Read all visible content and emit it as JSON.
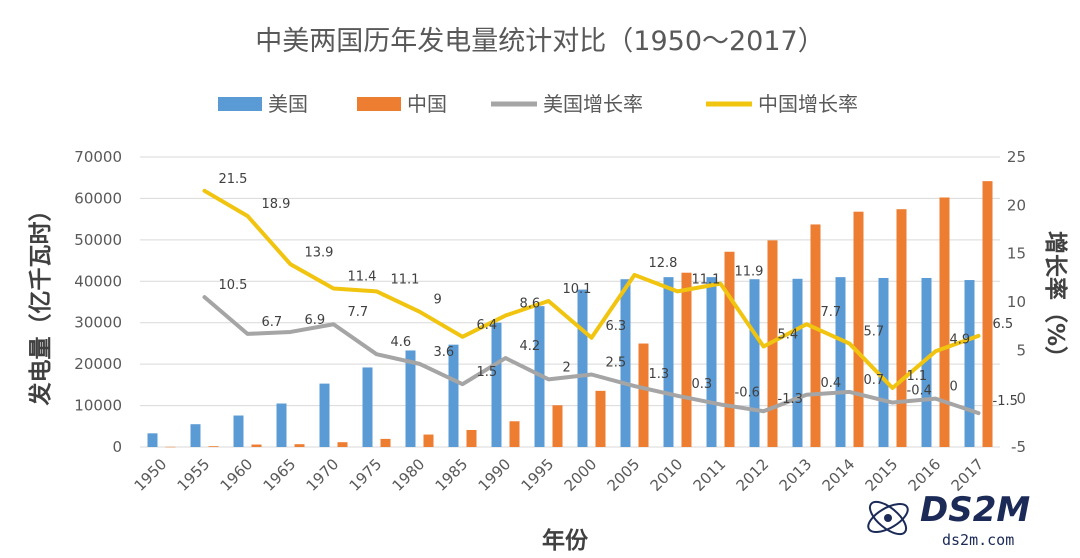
{
  "chart_data": {
    "type": "bar",
    "title": "中美两国历年发电量统计对比（1950～2017）",
    "xlabel": "年份",
    "ylabel": "发电量（亿千瓦时）",
    "y2label": "增长率（%）",
    "categories": [
      "1950",
      "1955",
      "1960",
      "1965",
      "1970",
      "1975",
      "1980",
      "1985",
      "1990",
      "1995",
      "2000",
      "2005",
      "2010",
      "2011",
      "2012",
      "2013",
      "2014",
      "2015",
      "2016",
      "2017"
    ],
    "ylim": [
      0,
      70000
    ],
    "y_ticks": [
      "0",
      "10000",
      "20000",
      "30000",
      "40000",
      "50000",
      "60000",
      "70000"
    ],
    "y2lim": [
      -5,
      25
    ],
    "y2_ticks": [
      "-5",
      "0",
      "5",
      "10",
      "15",
      "20",
      "25"
    ],
    "legend_position": "top",
    "series": [
      {
        "name": "美国",
        "kind": "bar",
        "color": "#5B9BD5",
        "values": [
          3300,
          5500,
          7600,
          10500,
          15300,
          19200,
          23300,
          24700,
          30000,
          34000,
          38000,
          40500,
          41000,
          41000,
          40500,
          40600,
          41000,
          40800,
          40800,
          40300
        ]
      },
      {
        "name": "中国",
        "kind": "bar",
        "color": "#ED7D31",
        "values": [
          46,
          193,
          594,
          676,
          1159,
          1958,
          3006,
          4107,
          6213,
          10077,
          13556,
          24975,
          42072,
          47130,
          49876,
          53721,
          56801,
          57400,
          60228,
          64171
        ]
      },
      {
        "name": "美国增长率",
        "kind": "line",
        "axis": "y2",
        "color": "#A5A5A5",
        "values": [
          null,
          10.5,
          6.7,
          6.9,
          7.7,
          4.6,
          3.6,
          1.5,
          4.2,
          2.0,
          2.5,
          1.3,
          0.3,
          -0.6,
          -1.3,
          0.4,
          0.7,
          -0.4,
          0.0,
          -1.5
        ],
        "labels": [
          null,
          "10.5",
          "6.7",
          "6.9",
          "7.7",
          "4.6",
          "3.6",
          "1.5",
          "4.2",
          "2",
          "2.5",
          "1.3",
          "0.3",
          "-0.6",
          "-1.3",
          "0.4",
          "0.7",
          "-0.4",
          "0",
          "-1.5"
        ]
      },
      {
        "name": "中国增长率",
        "kind": "line",
        "axis": "y2",
        "color": "#F1C40F",
        "values": [
          null,
          21.5,
          18.9,
          13.9,
          11.4,
          11.1,
          9.0,
          6.4,
          8.6,
          10.1,
          6.3,
          12.8,
          11.1,
          11.9,
          5.4,
          7.7,
          5.7,
          1.1,
          4.9,
          6.5
        ],
        "labels": [
          null,
          "21.5",
          "18.9",
          "13.9",
          "11.4",
          "11.1",
          "9",
          "6.4",
          "8.6",
          "10.1",
          "6.3",
          "12.8",
          "11.1",
          "11.9",
          "5.4",
          "7.7",
          "5.7",
          "1.1",
          "4.9",
          "6.5"
        ]
      }
    ]
  },
  "watermark": {
    "logo_text": "DS2M",
    "url_text": "ds2m.com"
  }
}
